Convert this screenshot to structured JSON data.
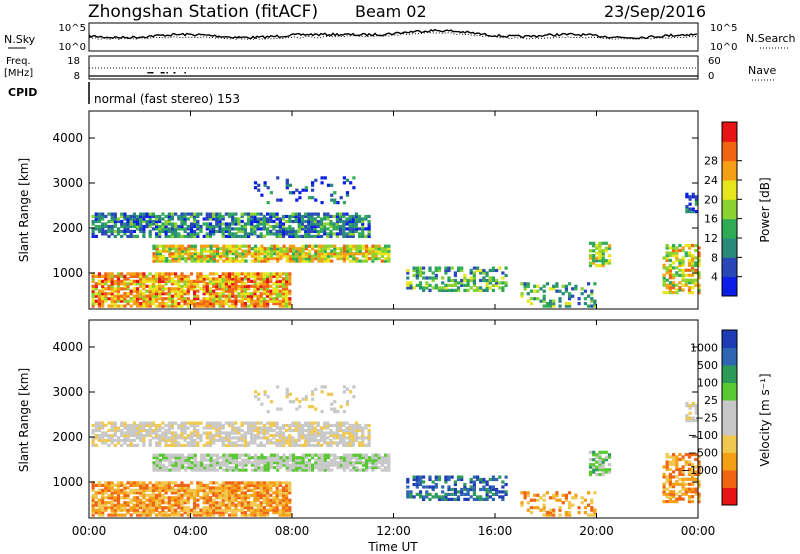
{
  "header": {
    "station": "Zhongshan Station (fitACF)",
    "beam": "Beam 02",
    "date": "23/Sep/2016"
  },
  "sky_panel": {
    "left_label": "N.Sky",
    "right_label": "N.Search",
    "left_ticks": [
      "10^5",
      "10^0"
    ],
    "right_ticks": [
      "10^5",
      "10^0"
    ]
  },
  "freq_panel": {
    "left_label_1": "Freq.",
    "left_label_2": "[MHz]",
    "right_label": "Nave",
    "left_ticks": [
      "18",
      "8"
    ],
    "right_ticks": [
      "60",
      "0"
    ]
  },
  "cpid": {
    "label": "CPID",
    "text": "normal (fast stereo) 153"
  },
  "x_axis": {
    "label": "Time UT",
    "ticks": [
      "00:00",
      "04:00",
      "08:00",
      "12:00",
      "16:00",
      "20:00",
      "00:00"
    ]
  },
  "colors": {
    "power_scale": [
      "#0a1ee6",
      "#2848b8",
      "#2a8a7a",
      "#2faa55",
      "#8ad230",
      "#e6e61e",
      "#f5a014",
      "#f06414",
      "#e61414"
    ],
    "velocity_scale": [
      "#e61414",
      "#f06414",
      "#f5a014",
      "#f0c850",
      "#c8c8c8",
      "#c8c8c8",
      "#5ac832",
      "#2e9a5a",
      "#2f66b4",
      "#1e3cb4"
    ]
  },
  "chart_data": [
    {
      "type": "heatmap",
      "panel": "power",
      "ylabel": "Slant Range [km]",
      "yticks": [
        "1000",
        "2000",
        "3000",
        "4000"
      ],
      "ylim": [
        200,
        4600
      ],
      "xlim": [
        0,
        24
      ],
      "colorbar_label": "Power [dB]",
      "colorbar_ticks": [
        "4",
        "8",
        "12",
        "16",
        "20",
        "24",
        "28"
      ],
      "clim": [
        0,
        30
      ],
      "grid": false
    },
    {
      "type": "heatmap",
      "panel": "velocity",
      "ylabel": "Slant Range [km]",
      "yticks": [
        "1000",
        "2000",
        "3000",
        "4000"
      ],
      "ylim": [
        200,
        4600
      ],
      "xlim": [
        0,
        24
      ],
      "colorbar_label": "Velocity [m s⁻¹]",
      "colorbar_ticks": [
        "1000",
        "500",
        "100",
        "25",
        "−25",
        "−100",
        "−500",
        "−1000"
      ],
      "clim": [
        -1000,
        1000
      ],
      "grid": false
    }
  ]
}
